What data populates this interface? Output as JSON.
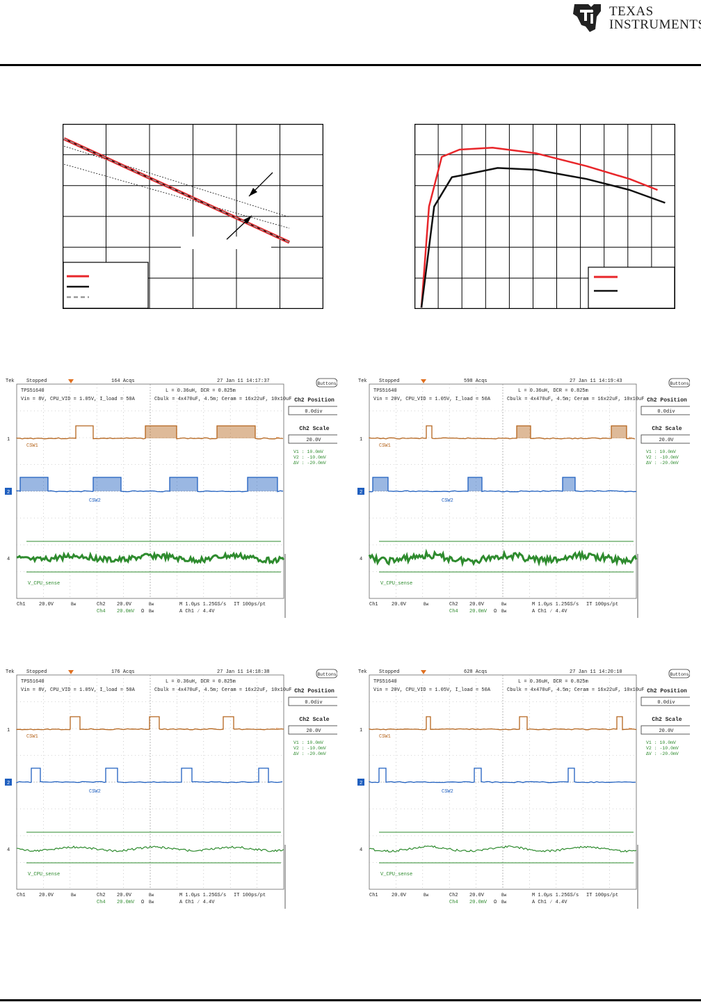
{
  "header": {
    "logo_line1": "TEXAS",
    "logo_line2": "INSTRUMENTS"
  },
  "colors": {
    "red_trace": "#e8262a",
    "black_trace": "#111111",
    "dashed_trace": "#999999",
    "ch1_trace": "#b5651d",
    "ch2_trace": "#1f5fbf",
    "ch4_trace": "#2e8b2e"
  },
  "chart_data": [
    {
      "type": "line",
      "description_hint": "load line graph with tolerance band",
      "series": [
        {
          "values": [
            [
              0,
              0.92
            ],
            [
              1,
              0.36
            ]
          ]
        },
        {
          "values": [
            [
              0,
              0.92
            ],
            [
              1,
              0.36
            ]
          ]
        },
        {
          "values": [
            [
              0,
              0.92
            ],
            [
              1,
              0.36
            ]
          ]
        }
      ],
      "grid": true,
      "legend": "bottom-left"
    },
    {
      "type": "line",
      "series": [
        {
          "values": [
            [
              0.0,
              0.0
            ],
            [
              0.03,
              0.55
            ],
            [
              0.08,
              0.82
            ],
            [
              0.15,
              0.86
            ],
            [
              0.28,
              0.87
            ],
            [
              0.45,
              0.84
            ],
            [
              0.65,
              0.77
            ],
            [
              0.82,
              0.7
            ],
            [
              0.93,
              0.64
            ]
          ]
        },
        {
          "values": [
            [
              0.0,
              0.0
            ],
            [
              0.05,
              0.55
            ],
            [
              0.12,
              0.71
            ],
            [
              0.16,
              0.72
            ],
            [
              0.3,
              0.76
            ],
            [
              0.45,
              0.75
            ],
            [
              0.65,
              0.7
            ],
            [
              0.82,
              0.64
            ],
            [
              0.96,
              0.57
            ]
          ]
        }
      ],
      "grid": true,
      "legend": "bottom-right"
    }
  ],
  "scopes": [
    {
      "status": "Stopped",
      "acqs": "164 Acqs",
      "timestamp": "27 Jan 11 14:17:37",
      "note1": "TPS51640",
      "note2": "Vin = 8V, CPU_VID = 1.05V, I_load = 50A",
      "note3": "L = 0.36uH, DCR = 0.825m",
      "note4": "Cbulk = 4x470uF, 4.5m;  Ceram = 16x22uF, 10x10uF",
      "ch1_label": "CSW1",
      "ch2_label": "CSW2",
      "ch4_label": "V_CPU_sense",
      "footer": {
        "ch1": "Ch1",
        "ch1_scale": "20.0V",
        "ch2": "Ch2",
        "ch2_scale": "20.0V",
        "ch4": "Ch4",
        "ch4_scale": "20.0mV",
        "timebase": "M 1.0µs 1.25GS/s",
        "rec": "IT 100ps/pt",
        "trigger": "A  Ch1  ∕  4.4V"
      },
      "side": {
        "buttons": "Buttons",
        "pos_title": "Ch2 Position",
        "pos_val": "0.0div",
        "scale_title": "Ch2 Scale",
        "scale_val": "20.0V",
        "v1": "V1 :   10.0mV",
        "v2": "V2 :  -10.0mV",
        "dv": "ΔV :  -20.0mV"
      }
    },
    {
      "status": "Stopped",
      "acqs": "598 Acqs",
      "timestamp": "27 Jan 11 14:19:43",
      "note1": "TPS51640",
      "note2": "Vin = 20V, CPU_VID = 1.05V, I_load = 50A",
      "note3": "L = 0.36uH, DCR = 0.825m",
      "note4": "Cbulk = 4x470uF, 4.5m;  Ceram = 16x22uF, 10x10uF",
      "ch1_label": "CSW1",
      "ch2_label": "CSW2",
      "ch4_label": "V_CPU_sense",
      "footer": {
        "ch1": "Ch1",
        "ch1_scale": "20.0V",
        "ch2": "Ch2",
        "ch2_scale": "20.0V",
        "ch4": "Ch4",
        "ch4_scale": "20.0mV",
        "timebase": "M 1.0µs 1.25GS/s",
        "rec": "IT 100ps/pt",
        "trigger": "A  Ch1  ∕  4.4V"
      },
      "side": {
        "buttons": "Buttons",
        "pos_title": "Ch2 Position",
        "pos_val": "0.0div",
        "scale_title": "Ch2 Scale",
        "scale_val": "20.0V",
        "v1": "V1 :   10.0mV",
        "v2": "V2 :  -10.0mV",
        "dv": "ΔV :  -20.0mV"
      }
    },
    {
      "status": "Stopped",
      "acqs": "176 Acqs",
      "timestamp": "27 Jan 11 14:18:38",
      "note1": "TPS51640",
      "note2": "Vin = 8V, CPU_VID = 1.05V, I_load = 50A",
      "note3": "L = 0.36uH, DCR = 0.825m",
      "note4": "Cbulk = 4x470uF, 4.5m;  Ceram = 16x22uF, 10x10uF",
      "ch1_label": "CSW1",
      "ch2_label": "CSW2",
      "ch4_label": "V_CPU_sense",
      "footer": {
        "ch1": "Ch1",
        "ch1_scale": "20.0V",
        "ch2": "Ch2",
        "ch2_scale": "20.0V",
        "ch4": "Ch4",
        "ch4_scale": "20.0mV",
        "timebase": "M 1.0µs 1.25GS/s",
        "rec": "IT 100ps/pt",
        "trigger": "A  Ch1  ∕  4.4V"
      },
      "side": {
        "buttons": "Buttons",
        "pos_title": "Ch2 Position",
        "pos_val": "0.0div",
        "scale_title": "Ch2 Scale",
        "scale_val": "20.0V",
        "v1": "V1 :   10.0mV",
        "v2": "V2 :  -10.0mV",
        "dv": "ΔV :  -20.0mV"
      }
    },
    {
      "status": "Stopped",
      "acqs": "628 Acqs",
      "timestamp": "27 Jan 11 14:20:10",
      "note1": "TPS51640",
      "note2": "Vin = 20V, CPU_VID = 1.05V, I_load = 50A",
      "note3": "L = 0.36uH, DCR = 0.825m",
      "note4": "Cbulk = 4x470uF, 4.5m;  Ceram = 16x22uF, 10x10uF",
      "ch1_label": "CSW1",
      "ch2_label": "CSW2",
      "ch4_label": "V_CPU_sense",
      "footer": {
        "ch1": "Ch1",
        "ch1_scale": "20.0V",
        "ch2": "Ch2",
        "ch2_scale": "20.0V",
        "ch4": "Ch4",
        "ch4_scale": "20.0mV",
        "timebase": "M 1.0µs 1.25GS/s",
        "rec": "IT 100ps/pt",
        "trigger": "A  Ch1  ∕  4.4V"
      },
      "side": {
        "buttons": "Buttons",
        "pos_title": "Ch2 Position",
        "pos_val": "0.0div",
        "scale_title": "Ch2 Scale",
        "scale_val": "20.0V",
        "v1": "V1 :   10.0mV",
        "v2": "V2 :  -10.0mV",
        "dv": "ΔV :  -20.0mV"
      }
    }
  ]
}
